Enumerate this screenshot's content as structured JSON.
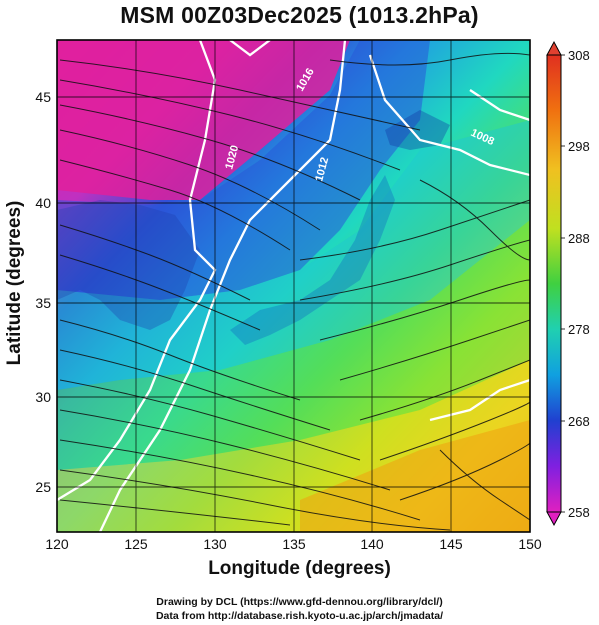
{
  "title": "MSM 00Z03Dec2025 (1013.2hPa)",
  "xlabel": "Longitude (degrees)",
  "ylabel": "Latitude  (degrees)",
  "credits": {
    "line1": "Drawing by DCL (https://www.gfd-dennou.org/library/dcl/)",
    "line2": "Data from http://database.rish.kyoto-u.ac.jp/arch/jmadata/"
  },
  "map": {
    "xlim": [
      120,
      150
    ],
    "ylim": [
      22.5,
      48
    ],
    "xticks": [
      "120",
      "125",
      "130",
      "135",
      "140",
      "145",
      "150"
    ],
    "yticks": [
      "25",
      "30",
      "35",
      "40",
      "45"
    ],
    "grid": true
  },
  "colorbar": {
    "min": 258,
    "max": 308,
    "labels": [
      "308",
      "298",
      "288",
      "278",
      "268",
      "258"
    ],
    "colors": [
      "#d01060",
      "#e020c0",
      "#8020e0",
      "#2040d0",
      "#10a0e0",
      "#20d0c0",
      "#30d060",
      "#80e020",
      "#e0e020",
      "#f0a000",
      "#f06000",
      "#e03020"
    ]
  },
  "contour_labels": [
    "1016",
    "1020",
    "1012",
    "1008"
  ]
}
